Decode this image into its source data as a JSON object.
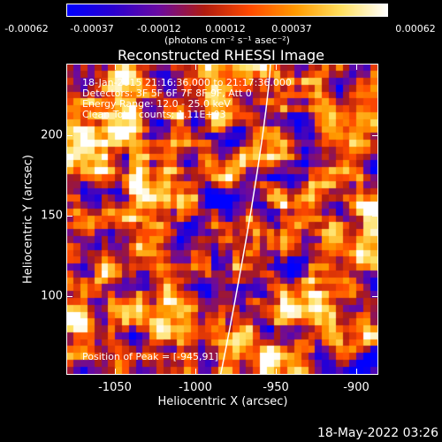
{
  "colorbar": {
    "ticks": [
      "-0.00062",
      "-0.00037",
      "-0.00012",
      "0.00012",
      "0.00037",
      "0.00062"
    ],
    "units": "(photons cm⁻² s⁻¹ asec⁻²)",
    "colors": [
      "#0000ff",
      "#2a00d0",
      "#6a0aa0",
      "#b01c10",
      "#ff4a00",
      "#ff9a00",
      "#ffe060",
      "#ffffff"
    ]
  },
  "title": "Reconstructed RHESSI Image",
  "info": {
    "time_range": "18-Jan-2015 21:16:36.000 to 21:17:36.000",
    "detectors": "Detectors: 3F 5F 6F 7F 8F 9F, Att 0",
    "energy": "Energy Range: 12.0 - 25.0 keV",
    "clean": "Clean     Total counts: 1.11E+03",
    "peak": "Position of Peak = [-945,91]"
  },
  "axes": {
    "xlabel": "Heliocentric X (arcsec)",
    "ylabel": "Heliocentric Y (arcsec)",
    "xticks": [
      "-1050",
      "-1000",
      "-950",
      "-900"
    ],
    "yticks": [
      "200",
      "150",
      "100"
    ]
  },
  "footer": {
    "date": "18-May-2022 03:26"
  },
  "chart_data": {
    "type": "heatmap",
    "title": "Reconstructed RHESSI Image",
    "xlabel": "Heliocentric X (arcsec)",
    "ylabel": "Heliocentric Y (arcsec)",
    "xlim": [
      -1078,
      -884
    ],
    "ylim": [
      46,
      240
    ],
    "peak": [
      -945,
      91
    ],
    "limb_line": true
  }
}
